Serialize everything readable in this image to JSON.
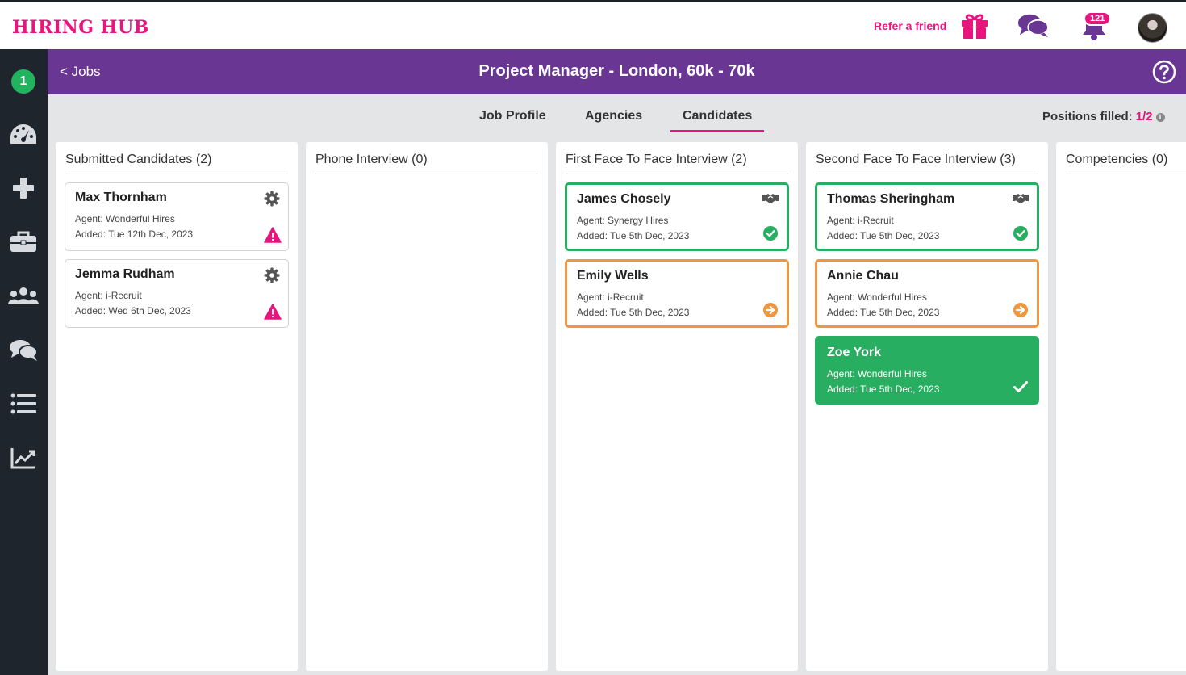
{
  "app": {
    "logo": "HIRING HUB",
    "refer_label": "Refer a friend",
    "notification_count": "121"
  },
  "sidebar": {
    "count_badge": "1",
    "items": [
      "gauge-icon",
      "plus-icon",
      "briefcase-icon",
      "team-icon",
      "chat-icon",
      "list-icon",
      "chart-icon"
    ]
  },
  "job": {
    "back_label": "< Jobs",
    "title": "Project Manager - London, 60k - 70k"
  },
  "tabs": [
    {
      "label": "Job Profile"
    },
    {
      "label": "Agencies"
    },
    {
      "label": "Candidates",
      "active": true
    }
  ],
  "positions": {
    "label": "Positions filled:",
    "value": "1/2"
  },
  "columns": [
    {
      "title": "Submitted Candidates (2)",
      "cards": [
        {
          "name": "Max Thornham",
          "agent": "Agent: Wonderful Hires",
          "added": "Added: Tue 12th Dec, 2023",
          "style": "plain",
          "top_icon": "gear-icon",
          "bottom_icon": "warning-icon"
        },
        {
          "name": "Jemma Rudham",
          "agent": "Agent: i-Recruit",
          "added": "Added: Wed 6th Dec, 2023",
          "style": "plain",
          "top_icon": "gear-icon",
          "bottom_icon": "warning-icon"
        }
      ]
    },
    {
      "title": "Phone Interview (0)",
      "cards": []
    },
    {
      "title": "First Face To Face Interview (2)",
      "cards": [
        {
          "name": "James Chosely",
          "agent": "Agent: Synergy Hires",
          "added": "Added: Tue 5th Dec, 2023",
          "style": "green",
          "top_icon": "handshake-icon",
          "bottom_icon": "check-circle-icon"
        },
        {
          "name": "Emily Wells",
          "agent": "Agent: i-Recruit",
          "added": "Added: Tue 5th Dec, 2023",
          "style": "orange",
          "top_icon": "",
          "bottom_icon": "arrow-circle-icon"
        }
      ]
    },
    {
      "title": "Second Face To Face Interview (3)",
      "cards": [
        {
          "name": "Thomas Sheringham",
          "agent": "Agent: i-Recruit",
          "added": "Added: Tue 5th Dec, 2023",
          "style": "green",
          "top_icon": "handshake-icon",
          "bottom_icon": "check-circle-icon"
        },
        {
          "name": "Annie Chau",
          "agent": "Agent: Wonderful Hires",
          "added": "Added: Tue 5th Dec, 2023",
          "style": "orange",
          "top_icon": "",
          "bottom_icon": "arrow-circle-icon"
        },
        {
          "name": "Zoe York",
          "agent": "Agent: Wonderful Hires",
          "added": "Added: Tue 5th Dec, 2023",
          "style": "filled",
          "top_icon": "",
          "bottom_icon": "check-icon"
        }
      ]
    },
    {
      "title": "Competencies (0)",
      "cards": []
    }
  ],
  "colors": {
    "brand_pink": "#e8157f",
    "header_purple": "#6a3694",
    "success_green": "#27ae60",
    "warning_orange": "#ef9740",
    "sidebar_dark": "#1f252c"
  }
}
